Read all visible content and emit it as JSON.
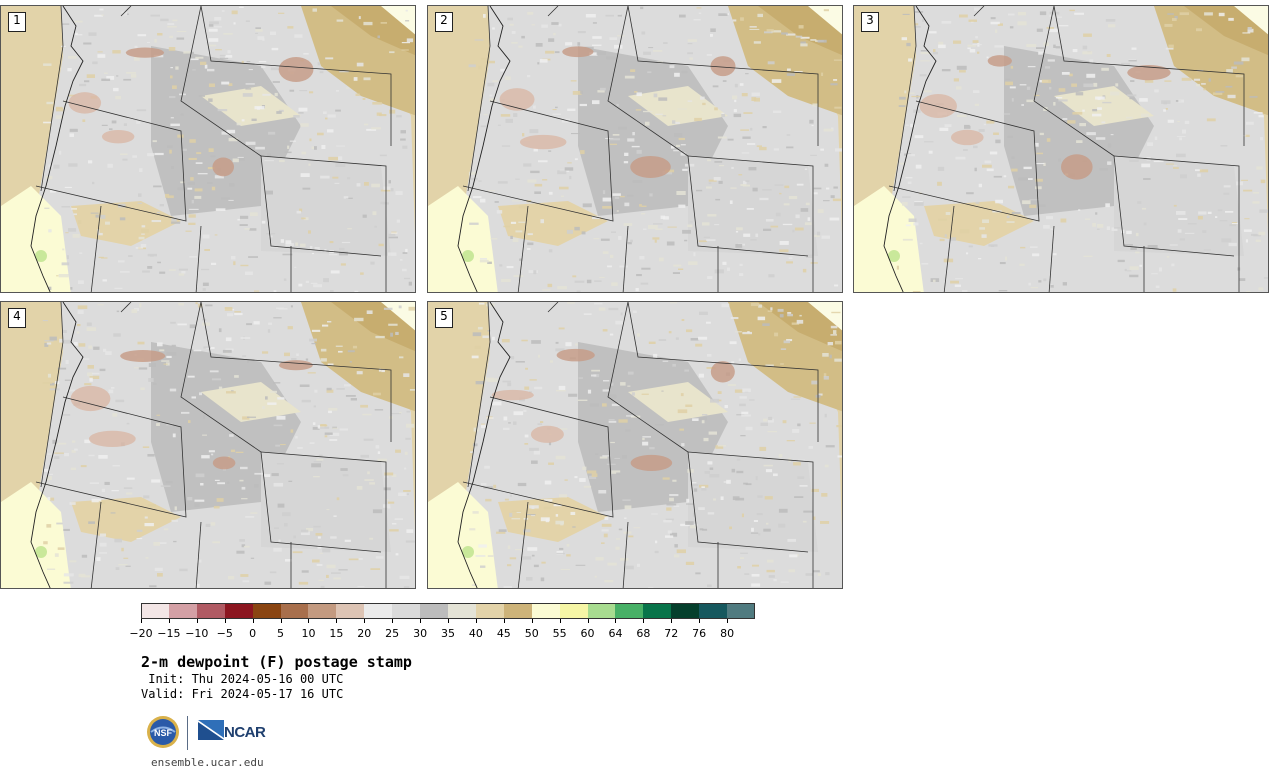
{
  "panels": [
    {
      "label": "1"
    },
    {
      "label": "2"
    },
    {
      "label": "3"
    },
    {
      "label": "4"
    },
    {
      "label": "5"
    }
  ],
  "colorbar": {
    "colors": [
      "#f3e6e6",
      "#d4a0a5",
      "#b05a63",
      "#8c1620",
      "#8a4512",
      "#a86f4c",
      "#c39a80",
      "#ddc4b4",
      "#ebebeb",
      "#dadada",
      "#bcbcbc",
      "#e4e3d6",
      "#e3d3a9",
      "#cdb379",
      "#fbfbd4",
      "#f6f6a6",
      "#a8dc90",
      "#48b066",
      "#08744a",
      "#053f2c",
      "#16585e",
      "#507b80"
    ],
    "ticks": [
      "−20",
      "−15",
      "−10",
      "−5",
      "0",
      "5",
      "10",
      "15",
      "20",
      "25",
      "30",
      "35",
      "40",
      "45",
      "50",
      "55",
      "60",
      "64",
      "68",
      "72",
      "76",
      "80"
    ]
  },
  "title": "2-m dewpoint (F) postage stamp",
  "init": " Init: Thu 2024-05-16 00 UTC",
  "valid": "Valid: Fri 2024-05-17 16 UTC",
  "logos": {
    "ncar": "NCAR",
    "nsf": "NSF"
  },
  "footer": "ensemble.ucar.edu"
}
